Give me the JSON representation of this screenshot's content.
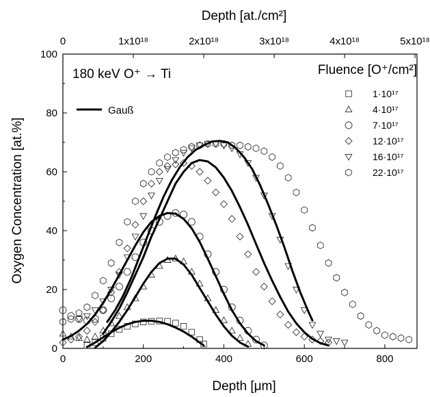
{
  "chart_data": {
    "type": "scatter",
    "title": "",
    "annotation_text": "180 keV O⁺ → Ti",
    "xlabel": "Depth [μm]",
    "ylabel": "Oxygen Concentration [at.%]",
    "top_xlabel": "Depth [at./cm²]",
    "xlim": [
      0,
      880
    ],
    "ylim": [
      0,
      100
    ],
    "x_ticks": [
      "0",
      "200",
      "400",
      "600",
      "800"
    ],
    "y_ticks": [
      "0",
      "20",
      "40",
      "60",
      "80",
      "100"
    ],
    "top_ticks": [
      "0",
      "1x10¹⁸",
      "2x10¹⁸",
      "3x10¹⁸",
      "4x10¹⁸",
      "5x10¹⁸"
    ],
    "top_tick_x": [
      0,
      175,
      350,
      525,
      700,
      875
    ],
    "legend_title": "Fluence [O⁺/cm²]",
    "legend_position": "top-right",
    "fit_label": "Gauß",
    "grid": false,
    "series": [
      {
        "name": "1·10¹⁷",
        "marker": "square",
        "x": [
          60,
          80,
          100,
          120,
          140,
          160,
          180,
          200,
          220,
          240,
          260,
          280,
          300,
          320,
          340,
          350
        ],
        "y": [
          1,
          2,
          3.5,
          5,
          6.5,
          7.5,
          8.3,
          9,
          9.2,
          9.3,
          9.2,
          8.6,
          7.5,
          5.5,
          3,
          1.5
        ]
      },
      {
        "name": "4·10¹⁷",
        "marker": "triangle-up",
        "x": [
          0,
          20,
          40,
          60,
          80,
          100,
          120,
          140,
          160,
          180,
          200,
          220,
          240,
          260,
          280,
          300,
          320,
          340,
          360,
          380,
          400,
          420,
          440,
          460
        ],
        "y": [
          5,
          4,
          3.5,
          3,
          4,
          6,
          8.5,
          11,
          14,
          17,
          21,
          25,
          28,
          30,
          30.5,
          29.5,
          26,
          22,
          17,
          13,
          9.5,
          6,
          3.5,
          1.5
        ]
      },
      {
        "name": "7·10¹⁷",
        "marker": "circle",
        "x": [
          0,
          20,
          40,
          60,
          80,
          100,
          120,
          140,
          160,
          180,
          200,
          220,
          240,
          260,
          280,
          300,
          320,
          340,
          360,
          380,
          400,
          420,
          440,
          460,
          480,
          500
        ],
        "y": [
          13,
          11,
          10,
          9.5,
          10,
          13,
          17,
          21,
          26,
          31,
          36,
          40,
          43,
          45,
          46,
          45.5,
          43,
          38,
          32,
          26,
          20,
          14,
          9.5,
          6,
          3,
          1
        ]
      },
      {
        "name": "12·10¹⁷",
        "marker": "diamond",
        "x": [
          0,
          20,
          40,
          60,
          80,
          100,
          120,
          140,
          160,
          180,
          200,
          220,
          240,
          260,
          280,
          300,
          320,
          340,
          360,
          380,
          400,
          420,
          440,
          460,
          480,
          500,
          520,
          540,
          560,
          580,
          600,
          620,
          640,
          660
        ],
        "y": [
          2,
          3,
          4,
          6,
          9,
          13,
          19,
          26,
          34,
          42,
          50,
          56,
          60,
          62,
          62.5,
          63,
          62,
          60,
          57,
          53,
          49,
          44,
          38,
          32,
          26,
          21,
          16,
          11.5,
          8,
          5.5,
          4,
          3,
          2.5,
          2
        ]
      },
      {
        "name": "16·10¹⁷",
        "marker": "triangle-down",
        "x": [
          40,
          60,
          80,
          100,
          120,
          140,
          160,
          180,
          200,
          220,
          240,
          260,
          280,
          300,
          320,
          340,
          360,
          380,
          400,
          420,
          440,
          460,
          480,
          500,
          520,
          540,
          560,
          580,
          600,
          620,
          640,
          660,
          680,
          700
        ],
        "y": [
          10,
          11,
          13,
          16,
          20,
          25,
          31,
          38,
          45,
          52,
          57,
          61,
          64,
          66.5,
          68,
          69,
          69.5,
          69.5,
          69,
          68,
          66,
          63,
          58,
          52,
          45,
          37,
          28,
          20,
          13,
          8,
          5,
          3,
          2.5,
          2
        ]
      },
      {
        "name": "22·10¹⁷",
        "marker": "hexagon",
        "x": [
          0,
          20,
          40,
          60,
          80,
          100,
          120,
          140,
          160,
          180,
          200,
          220,
          240,
          260,
          280,
          300,
          320,
          340,
          360,
          380,
          400,
          420,
          440,
          460,
          480,
          500,
          520,
          540,
          560,
          580,
          600,
          620,
          640,
          660,
          680,
          700,
          720,
          740,
          760,
          780,
          800,
          820,
          840,
          860
        ],
        "y": [
          9,
          10,
          12,
          14,
          18,
          23,
          29,
          36,
          43,
          50,
          56,
          60,
          63,
          65,
          66.5,
          67.5,
          68.5,
          69,
          69.5,
          69.5,
          69.5,
          69,
          69,
          68.5,
          68,
          67,
          65,
          62,
          58,
          53,
          47,
          41,
          35,
          29,
          24,
          19,
          15,
          11,
          8,
          6,
          4.5,
          4,
          3.5,
          3
        ]
      }
    ],
    "fits": [
      {
        "x": [
          60,
          80,
          100,
          120,
          140,
          160,
          180,
          200,
          220,
          240,
          260,
          280,
          300,
          320,
          340,
          350
        ],
        "y": [
          0.5,
          2,
          3.8,
          5.5,
          7,
          8.2,
          9,
          9.4,
          9.4,
          9,
          8.2,
          7.1,
          5.7,
          4,
          2,
          1
        ]
      },
      {
        "x": [
          80,
          100,
          120,
          140,
          160,
          180,
          200,
          220,
          240,
          260,
          280,
          300,
          320,
          340,
          360,
          380,
          400,
          420,
          440,
          460
        ],
        "y": [
          0.2,
          2.5,
          5.5,
          9,
          13,
          17.5,
          22,
          26,
          29,
          30.5,
          30.5,
          28.5,
          25,
          20.5,
          16,
          11.5,
          7.5,
          4.3,
          2,
          0.6
        ]
      },
      {
        "x": [
          0,
          20,
          40,
          60,
          80,
          100,
          120,
          140,
          160,
          180,
          200,
          220,
          240,
          260,
          280,
          300,
          320,
          340,
          360,
          380,
          400,
          420,
          440,
          460,
          480,
          500
        ],
        "y": [
          3,
          4.2,
          6,
          8.3,
          11.5,
          15.5,
          20,
          25,
          30,
          35,
          39.5,
          43,
          45,
          46,
          45.8,
          44,
          40.8,
          36.2,
          30.5,
          24.5,
          18.5,
          13,
          8.5,
          5,
          2.5,
          1
        ]
      },
      {
        "x": [
          100,
          120,
          140,
          160,
          180,
          200,
          220,
          240,
          260,
          280,
          300,
          320,
          340,
          360,
          380,
          400,
          420,
          440,
          460,
          480,
          500,
          520,
          540,
          560,
          580,
          600,
          620,
          640,
          660
        ],
        "y": [
          5,
          9,
          13.5,
          19,
          25,
          31,
          38,
          44,
          50,
          56,
          60,
          63,
          64,
          63.5,
          61.5,
          58,
          53.5,
          48,
          42,
          35.5,
          29,
          23,
          17.5,
          12.5,
          8.5,
          5.5,
          3.2,
          1.8,
          1
        ]
      },
      {
        "x": [
          110,
          130,
          150,
          170,
          190,
          210,
          230,
          250,
          270,
          290,
          310,
          330,
          350,
          370,
          390,
          410,
          430,
          450,
          470,
          490,
          510,
          530,
          550,
          570,
          590,
          610,
          620
        ],
        "y": [
          9,
          13,
          18,
          24,
          31,
          38,
          45,
          51.5,
          57,
          61.5,
          65,
          67.5,
          69,
          70.3,
          70.5,
          70,
          68,
          65,
          61,
          55.5,
          49,
          42,
          34.5,
          26.5,
          19,
          12.5,
          9.5
        ]
      }
    ]
  }
}
